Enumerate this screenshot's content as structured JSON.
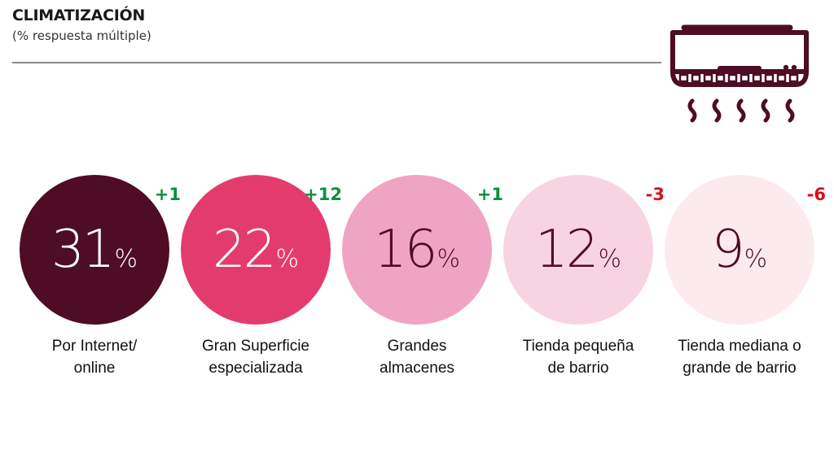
{
  "header": {
    "title": "CLIMATIZACIÓN",
    "subtitle": "(% respuesta múltiple)",
    "icon": "air-conditioner-icon"
  },
  "colors": {
    "accent": "#4e0c25",
    "positive": "#0a9040",
    "negative": "#d4111f"
  },
  "chart_data": {
    "type": "bubble",
    "title": "CLIMATIZACIÓN",
    "subtitle": "(% respuesta múltiple)",
    "unit": "%",
    "categories": [
      "Por Internet/ online",
      "Gran Superficie especializada",
      "Grandes almacenes",
      "Tienda pequeña de barrio",
      "Tienda mediana o grande de barrio"
    ],
    "items": [
      {
        "label_lines": [
          "Por Internet/",
          "online"
        ],
        "value": 31,
        "value_text": "31",
        "change": "+1",
        "fill": "#4e0c25",
        "text_color": "#ffffff"
      },
      {
        "label_lines": [
          "Gran Superficie",
          "especializada"
        ],
        "value": 22,
        "value_text": "22",
        "change": "+12",
        "fill": "#e43b6f",
        "text_color": "#ffffff"
      },
      {
        "label_lines": [
          "Grandes",
          "almacenes"
        ],
        "value": 16,
        "value_text": "16",
        "change": "+1",
        "fill": "#f0a4c3",
        "text_color": "#4e0c25"
      },
      {
        "label_lines": [
          "Tienda pequeña",
          "de barrio"
        ],
        "value": 12,
        "value_text": "12",
        "change": "-3",
        "fill": "#f8d4e2",
        "text_color": "#4e0c25"
      },
      {
        "label_lines": [
          "Tienda mediana o",
          "grande de barrio"
        ],
        "value": 9,
        "value_text": "9",
        "change": "-6",
        "fill": "#fdeaee",
        "text_color": "#4e0c25"
      }
    ],
    "percent_sign": "%"
  }
}
